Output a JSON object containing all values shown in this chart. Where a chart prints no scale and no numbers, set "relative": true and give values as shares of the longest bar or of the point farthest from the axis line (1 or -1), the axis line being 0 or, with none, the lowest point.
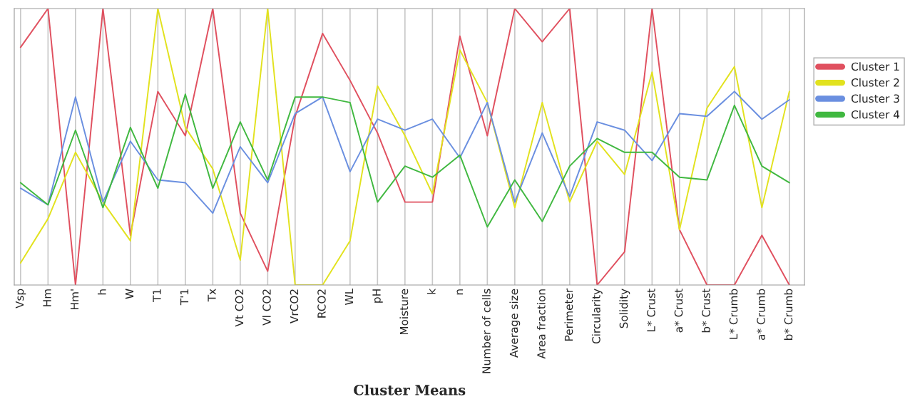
{
  "chart_data": {
    "type": "line",
    "title": "Cluster Means",
    "relative": true,
    "grid": "x",
    "legend": "right",
    "marker": "none",
    "line_style": "solid",
    "categories": [
      "Vsp",
      "Hm",
      "Hm'",
      "h",
      "W",
      "T1",
      "T'1",
      "Tx",
      "Vt CO2",
      "Vl CO2",
      "VrCO2",
      "RCO2",
      "WL",
      "pH",
      "Moisture",
      "k",
      "n",
      "Number of cells",
      "Average size",
      "Area fraction",
      "Perimeter",
      "Circularity",
      "Solidity",
      "L* Crust",
      "a* Crust",
      "b* Crust",
      "L* Crumb",
      "a* Crumb",
      "b* Crumb"
    ],
    "series": [
      {
        "name": "Cluster 1",
        "color": "#e0505f",
        "values": [
          0.86,
          1,
          0,
          1,
          0.18,
          0.7,
          0.54,
          1,
          0.26,
          0.05,
          0.61,
          0.91,
          0.74,
          0.55,
          0.3,
          0.3,
          0.9,
          0.54,
          1,
          0.88,
          1,
          0,
          0.12,
          1,
          0.2,
          0,
          0,
          0.18,
          0
        ]
      },
      {
        "name": "Cluster 2",
        "color": "#e2e21e",
        "values": [
          0.08,
          0.24,
          0.48,
          0.3,
          0.16,
          1,
          0.57,
          0.42,
          0.09,
          1,
          0,
          0,
          0.16,
          0.72,
          0.54,
          0.33,
          0.85,
          0.66,
          0.28,
          0.66,
          0.3,
          0.52,
          0.4,
          0.77,
          0.2,
          0.64,
          0.79,
          0.28,
          0.7
        ]
      },
      {
        "name": "Cluster 3",
        "color": "#6a8fe0",
        "values": [
          0.35,
          0.29,
          0.68,
          0.3,
          0.52,
          0.38,
          0.37,
          0.26,
          0.5,
          0.37,
          0.62,
          0.68,
          0.41,
          0.6,
          0.56,
          0.6,
          0.46,
          0.66,
          0.3,
          0.55,
          0.32,
          0.59,
          0.56,
          0.45,
          0.62,
          0.61,
          0.7,
          0.6,
          0.67
        ]
      },
      {
        "name": "Cluster 4",
        "color": "#40b840",
        "values": [
          0.37,
          0.29,
          0.56,
          0.28,
          0.57,
          0.35,
          0.69,
          0.35,
          0.59,
          0.38,
          0.68,
          0.68,
          0.66,
          0.3,
          0.43,
          0.39,
          0.47,
          0.21,
          0.38,
          0.23,
          0.43,
          0.53,
          0.48,
          0.48,
          0.39,
          0.38,
          0.65,
          0.43,
          0.37
        ]
      }
    ]
  }
}
